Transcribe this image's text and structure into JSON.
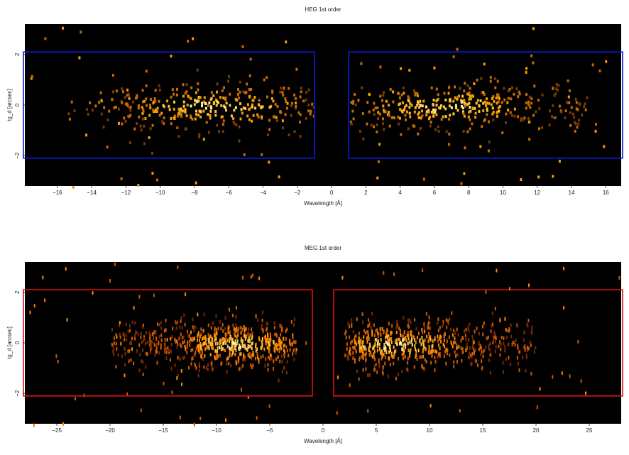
{
  "chart_data": [
    {
      "type": "heatmap",
      "title": "HEG 1st order",
      "xlabel": "Wavelength [Å]",
      "ylabel": "tg_d [arcsec]",
      "xlim": [
        -17.9,
        16.9
      ],
      "ylim": [
        -3.2,
        3.2
      ],
      "xticks": [
        -16,
        -14,
        -12,
        -10,
        -8,
        -6,
        -4,
        -2,
        0,
        2,
        4,
        6,
        8,
        10,
        12,
        14,
        16
      ],
      "xticklabels": [
        "−16",
        "−14",
        "−12",
        "−10",
        "−8",
        "−6",
        "−4",
        "−2",
        "0",
        "2",
        "4",
        "6",
        "8",
        "10",
        "12",
        "14",
        "16"
      ],
      "yticks": [
        -2,
        0,
        2
      ],
      "yticklabels": [
        "−2",
        "0",
        "2"
      ],
      "region_color": "#0a1adb",
      "regions": [
        {
          "x": [
            -18.2,
            -1.0
          ],
          "y": [
            -2.1,
            2.1
          ]
        },
        {
          "x": [
            1.0,
            17.5
          ],
          "y": [
            -2.1,
            2.1
          ]
        }
      ],
      "source_bands": [
        {
          "x": [
            -15.5,
            -1.0
          ],
          "peak": -7.0
        },
        {
          "x": [
            1.0,
            15.0
          ],
          "peak": 6.5
        }
      ],
      "colormap": [
        "#7a3a00",
        "#c96a00",
        "#f2a000",
        "#ffc83a",
        "#fff0a8"
      ],
      "grid": false,
      "background": "#000000"
    },
    {
      "type": "heatmap",
      "title": "MEG 1st order",
      "xlabel": "Wavelength [Å]",
      "ylabel": "tg_d [arcsec]",
      "xlim": [
        -28,
        28
      ],
      "ylim": [
        -3.2,
        3.2
      ],
      "xticks": [
        -25,
        -20,
        -15,
        -10,
        -5,
        0,
        5,
        10,
        15,
        20,
        25
      ],
      "xticklabels": [
        "−25",
        "−20",
        "−15",
        "−10",
        "−5",
        "0",
        "5",
        "10",
        "15",
        "20",
        "25"
      ],
      "yticks": [
        -2,
        0,
        2
      ],
      "yticklabels": [
        "−2",
        "0",
        "2"
      ],
      "region_color": "#e01010",
      "regions": [
        {
          "x": [
            -28.5,
            -1.0
          ],
          "y": [
            -2.1,
            2.1
          ]
        },
        {
          "x": [
            1.0,
            28.5
          ],
          "y": [
            -2.1,
            2.1
          ]
        }
      ],
      "source_bands": [
        {
          "x": [
            -20.0,
            -2.5
          ],
          "peak": -8.0
        },
        {
          "x": [
            2.0,
            20.0
          ],
          "peak": 7.0
        }
      ],
      "colormap": [
        "#7a2a00",
        "#d25a00",
        "#ff8c00",
        "#ffc040",
        "#fff4b0"
      ],
      "grid": false,
      "background": "#000000"
    }
  ]
}
